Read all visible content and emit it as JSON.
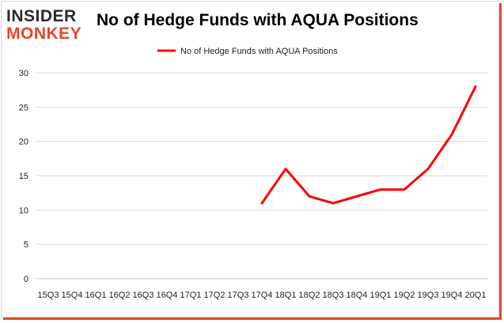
{
  "branding": {
    "logo_line1": "INSIDER",
    "logo_line2": "MONKEY"
  },
  "chart_data": {
    "type": "line",
    "title": "No of Hedge Funds with AQUA Positions",
    "categories": [
      "15Q3",
      "15Q4",
      "16Q1",
      "16Q2",
      "16Q3",
      "16Q4",
      "17Q1",
      "17Q2",
      "17Q3",
      "17Q4",
      "18Q1",
      "18Q2",
      "18Q3",
      "18Q4",
      "19Q1",
      "19Q2",
      "19Q3",
      "19Q4",
      "20Q1"
    ],
    "series": [
      {
        "name": "No of Hedge Funds with AQUA Positions",
        "values": [
          null,
          null,
          null,
          null,
          null,
          null,
          null,
          null,
          null,
          11,
          16,
          12,
          11,
          12,
          13,
          13,
          16,
          21,
          28
        ],
        "color": "#ff0000"
      }
    ],
    "xlabel": "",
    "ylabel": "",
    "ylim": [
      0,
      30
    ],
    "yticks": [
      0,
      5,
      10,
      15,
      20,
      25,
      30
    ],
    "grid": true,
    "legend_position": "top"
  }
}
